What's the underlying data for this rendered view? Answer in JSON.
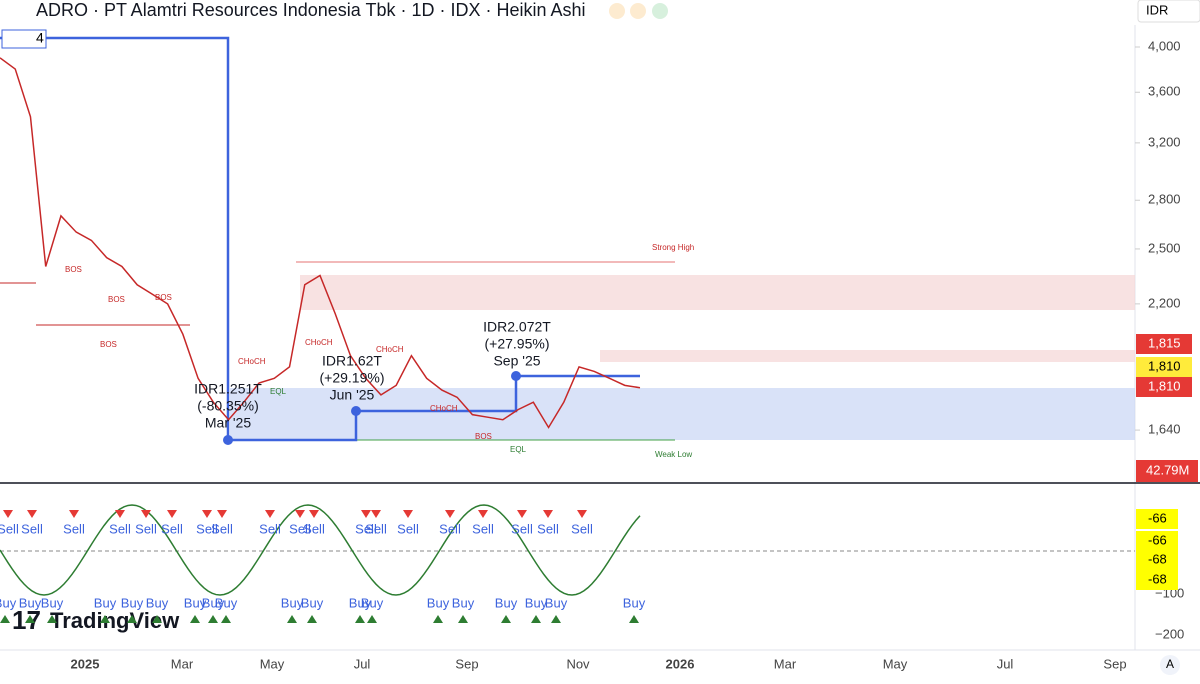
{
  "chart_data": {
    "type": "line",
    "title": "ADRO · PT Alamtri Resources Indonesia Tbk · 1D · IDX · Heikin Ashi",
    "color": "#c62828",
    "log": true,
    "values": [
      3900,
      3800,
      3400,
      2400,
      2700,
      2600,
      2550,
      2450,
      2400,
      2300,
      2250,
      2200,
      2050,
      1850,
      1750,
      1680,
      1750,
      1830,
      1850,
      1900,
      2300,
      2350,
      2150,
      1950,
      1850,
      1780,
      1820,
      1950,
      1850,
      1800,
      1770,
      1700,
      1690,
      1680,
      1720,
      1750,
      1650,
      1750,
      1900,
      1880,
      1850,
      1820,
      1810
    ],
    "ylim": [
      1450,
      4210
    ],
    "yticks": [
      {
        "value": 4000,
        "label": "4,000"
      },
      {
        "value": 3600,
        "label": "3,600"
      },
      {
        "value": 3200,
        "label": "3,200"
      },
      {
        "value": 2800,
        "label": "2,800"
      },
      {
        "value": 2500,
        "label": "2,500"
      },
      {
        "value": 2200,
        "label": "2,200"
      },
      {
        "value": 1640,
        "label": "1,640"
      }
    ]
  },
  "ui": {
    "currency": "IDR",
    "legend_count": "4",
    "price_badges": [
      "1,815",
      "1,810",
      "1,810"
    ],
    "volume_badge": "42.79M",
    "x_labels": [
      "2025",
      "Mar",
      "May",
      "Jul",
      "Sep",
      "Nov",
      "2026",
      "Mar",
      "May",
      "Jul",
      "Sep"
    ],
    "annotations": [
      "Strong High",
      "Weak Low",
      "BOS",
      "CHoCH",
      "EQL"
    ],
    "callouts": [
      [
        "IDR1.251T",
        "(-80.35%)",
        "Mar '25"
      ],
      [
        "IDR1.62T",
        "(+29.19%)",
        "Jun '25"
      ],
      [
        "IDR2.072T",
        "(+27.95%)",
        "Sep '25"
      ]
    ],
    "osc_badges": [
      "-66",
      "-66",
      "-68",
      "-68"
    ],
    "osc_axis": [
      "−100",
      "−200"
    ],
    "sell": "Sell",
    "buy": "Buy",
    "logo": "TradingView",
    "auto": "A"
  }
}
